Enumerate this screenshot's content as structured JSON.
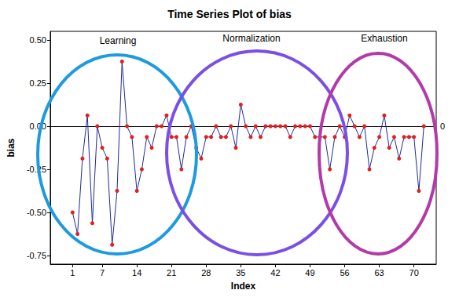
{
  "chart_data": {
    "type": "line",
    "title": "Time Series Plot of bias",
    "x_label": "Index",
    "y_label": "bias",
    "x": [
      1,
      2,
      3,
      4,
      5,
      6,
      7,
      8,
      9,
      10,
      11,
      12,
      13,
      14,
      15,
      16,
      17,
      18,
      19,
      20,
      21,
      22,
      23,
      24,
      25,
      26,
      27,
      28,
      29,
      30,
      31,
      32,
      33,
      34,
      35,
      36,
      37,
      38,
      39,
      40,
      41,
      42,
      43,
      44,
      45,
      46,
      47,
      48,
      49,
      50,
      51,
      52,
      53,
      54,
      55,
      56,
      57,
      58,
      59,
      60,
      61,
      62,
      63,
      64,
      65,
      66,
      67,
      68,
      69,
      70,
      71,
      72
    ],
    "series": [
      {
        "name": "bias",
        "color": "#1f2a9a",
        "marker": "circle",
        "line_style": "solid",
        "values": [
          -0.5,
          -0.625,
          -0.1875,
          0.0625,
          -0.5625,
          0,
          -0.125,
          -0.1875,
          -0.6875,
          -0.375,
          0.375,
          0,
          -0.0625,
          -0.375,
          -0.25,
          -0.0625,
          -0.125,
          0,
          0,
          0.0625,
          -0.0625,
          -0.0625,
          -0.25,
          -0.0625,
          0,
          -0.125,
          -0.1875,
          -0.0625,
          -0.0625,
          0,
          -0.0625,
          -0.0625,
          0,
          -0.125,
          0.125,
          0,
          -0.0625,
          0,
          -0.0625,
          0,
          0,
          0,
          0,
          0,
          -0.0625,
          0,
          0,
          0,
          0,
          -0.0625,
          -0.0625,
          -0.0625,
          -0.25,
          -0.0625,
          0,
          -0.0625,
          0.0625,
          0,
          -0.0625,
          0,
          -0.25,
          -0.125,
          -0.0625,
          0.0625,
          -0.125,
          -0.0625,
          -0.1875,
          -0.0625,
          -0.0625,
          -0.0625,
          -0.375,
          0
        ]
      }
    ],
    "xlim": [
      -3.5,
      74.5
    ],
    "xticks": [
      1,
      7,
      14,
      21,
      28,
      35,
      42,
      49,
      56,
      63,
      70
    ],
    "ylim": [
      -0.8,
      0.55
    ],
    "yticks": [
      {
        "value": -0.75,
        "label": "-0.75"
      },
      {
        "value": -0.5,
        "label": "-0.50"
      },
      -0.25,
      {
        "value": 0,
        "label": "0.00"
      },
      0.25,
      {
        "value": 0.5,
        "label": "0.50"
      }
    ],
    "reference_line": 0,
    "annotations": [
      "Learning",
      "Normalization",
      "Exhaustion"
    ],
    "grid": false
  }
}
